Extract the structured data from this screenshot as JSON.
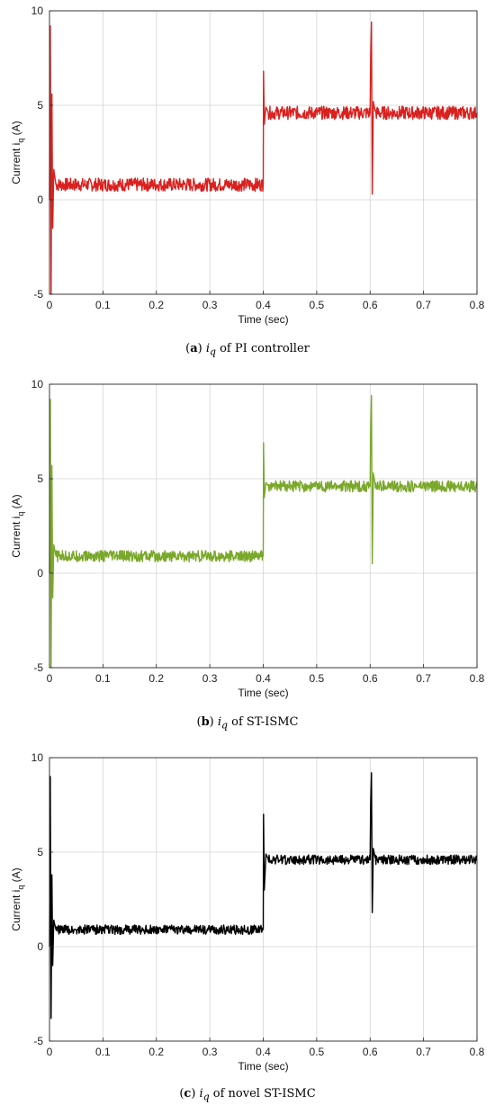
{
  "chart_data": [
    {
      "type": "line",
      "panel": "a",
      "xlabel": "Time (sec)",
      "ylabel": "Current i_q (A)",
      "ylabel_main": "Current i",
      "ylabel_sub": "q",
      "ylabel_unit": "(A)",
      "xlim": [
        0,
        0.8
      ],
      "ylim": [
        -5,
        10
      ],
      "xticks": [
        "0",
        "0.1",
        "0.2",
        "0.3",
        "0.4",
        "0.5",
        "0.6",
        "0.7",
        "0.8"
      ],
      "yticks": [
        "-5",
        "0",
        "5",
        "10"
      ],
      "grid": true,
      "color": "#d9211f",
      "noise": 0.35,
      "series": [
        {
          "x": [
            0,
            0.0015,
            0.003,
            0.0045,
            0.006,
            0.008,
            0.012,
            0.02,
            0.4,
            0.4005,
            0.402,
            0.405,
            0.41,
            0.6,
            0.601,
            0.6025,
            0.604,
            0.606,
            0.61,
            0.8
          ],
          "values": [
            0,
            9.2,
            -5,
            5.6,
            -1.5,
            1.6,
            0.8,
            0.8,
            0.8,
            6.8,
            4.0,
            4.9,
            4.6,
            4.6,
            7.5,
            9.4,
            0.3,
            5.2,
            4.6,
            4.6
          ]
        }
      ],
      "caption": {
        "letter": "a",
        "var": "i",
        "sub": "q",
        "text": "of PI controller"
      }
    },
    {
      "type": "line",
      "panel": "b",
      "xlabel": "Time (sec)",
      "ylabel": "Current i_q (A)",
      "ylabel_main": "Current i",
      "ylabel_sub": "q",
      "ylabel_unit": "(A)",
      "xlim": [
        0,
        0.8
      ],
      "ylim": [
        -5,
        10
      ],
      "xticks": [
        "0",
        "0.1",
        "0.2",
        "0.3",
        "0.4",
        "0.5",
        "0.6",
        "0.7",
        "0.8"
      ],
      "yticks": [
        "-5",
        "0",
        "5",
        "10"
      ],
      "grid": true,
      "color": "#7aa82a",
      "noise": 0.3,
      "series": [
        {
          "x": [
            0,
            0.0015,
            0.003,
            0.0045,
            0.006,
            0.008,
            0.012,
            0.02,
            0.4,
            0.4005,
            0.402,
            0.405,
            0.41,
            0.6,
            0.601,
            0.6025,
            0.604,
            0.606,
            0.61,
            0.8
          ],
          "values": [
            0,
            9.2,
            -5,
            5.7,
            -1.3,
            1.5,
            0.9,
            0.9,
            0.9,
            6.9,
            4.0,
            4.8,
            4.6,
            4.6,
            7.6,
            9.4,
            0.5,
            5.3,
            4.6,
            4.6
          ]
        }
      ],
      "caption": {
        "letter": "b",
        "var": "i",
        "sub": "q",
        "text": "of ST-ISMC"
      }
    },
    {
      "type": "line",
      "panel": "c",
      "xlabel": "Time (sec)",
      "ylabel": "Current i_q (A)",
      "ylabel_main": "Current i",
      "ylabel_sub": "q",
      "ylabel_unit": "(A)",
      "xlim": [
        0,
        0.8
      ],
      "ylim": [
        -5,
        10
      ],
      "xticks": [
        "0",
        "0.1",
        "0.2",
        "0.3",
        "0.4",
        "0.5",
        "0.6",
        "0.7",
        "0.8"
      ],
      "yticks": [
        "-5",
        "0",
        "5",
        "10"
      ],
      "grid": true,
      "color": "#000000",
      "noise": 0.25,
      "series": [
        {
          "x": [
            0,
            0.0015,
            0.003,
            0.0045,
            0.006,
            0.008,
            0.012,
            0.02,
            0.4,
            0.4005,
            0.402,
            0.405,
            0.41,
            0.6,
            0.601,
            0.6025,
            0.604,
            0.606,
            0.61,
            0.8
          ],
          "values": [
            0,
            9.0,
            -3.8,
            3.8,
            -1.0,
            1.4,
            0.9,
            0.9,
            0.9,
            7.0,
            3.0,
            4.9,
            4.6,
            4.6,
            7.5,
            9.2,
            1.8,
            5.2,
            4.6,
            4.6
          ]
        }
      ],
      "caption": {
        "letter": "c",
        "var": "i",
        "sub": "q",
        "text": "of novel ST-ISMC"
      }
    }
  ]
}
